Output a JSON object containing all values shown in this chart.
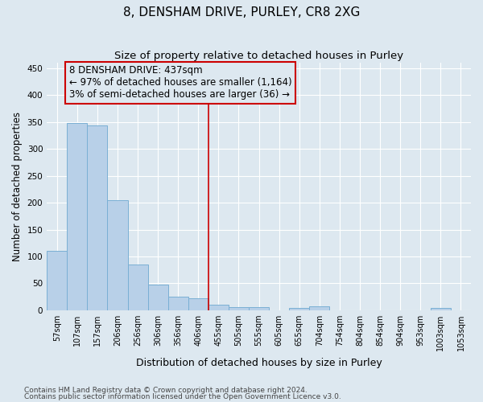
{
  "title": "8, DENSHAM DRIVE, PURLEY, CR8 2XG",
  "subtitle": "Size of property relative to detached houses in Purley",
  "xlabel": "Distribution of detached houses by size in Purley",
  "ylabel": "Number of detached properties",
  "bar_values": [
    110,
    348,
    343,
    204,
    85,
    47,
    25,
    22,
    11,
    6,
    6,
    0,
    5,
    8,
    0,
    0,
    0,
    0,
    0,
    4,
    0
  ],
  "x_tick_labels": [
    "57sqm",
    "107sqm",
    "157sqm",
    "206sqm",
    "256sqm",
    "306sqm",
    "356sqm",
    "406sqm",
    "455sqm",
    "505sqm",
    "555sqm",
    "605sqm",
    "655sqm",
    "704sqm",
    "754sqm",
    "804sqm",
    "854sqm",
    "904sqm",
    "953sqm",
    "1003sqm",
    "1053sqm"
  ],
  "bar_color": "#b8d0e8",
  "bar_edge_color": "#7aafd4",
  "bar_width": 1.0,
  "vline_x_index": 8,
  "vline_color": "#cc0000",
  "annotation_title": "8 DENSHAM DRIVE: 437sqm",
  "annotation_line1": "← 97% of detached houses are smaller (1,164)",
  "annotation_line2": "3% of semi-detached houses are larger (36) →",
  "annotation_box_color": "#cc0000",
  "ylim": [
    0,
    460
  ],
  "yticks": [
    0,
    50,
    100,
    150,
    200,
    250,
    300,
    350,
    400,
    450
  ],
  "footnote1": "Contains HM Land Registry data © Crown copyright and database right 2024.",
  "footnote2": "Contains public sector information licensed under the Open Government Licence v3.0.",
  "bg_color": "#dde8f0",
  "grid_color": "#ffffff",
  "title_fontsize": 11,
  "subtitle_fontsize": 9.5,
  "xlabel_fontsize": 9,
  "ylabel_fontsize": 8.5,
  "tick_fontsize": 7,
  "annotation_fontsize": 8.5,
  "footnote_fontsize": 6.5
}
